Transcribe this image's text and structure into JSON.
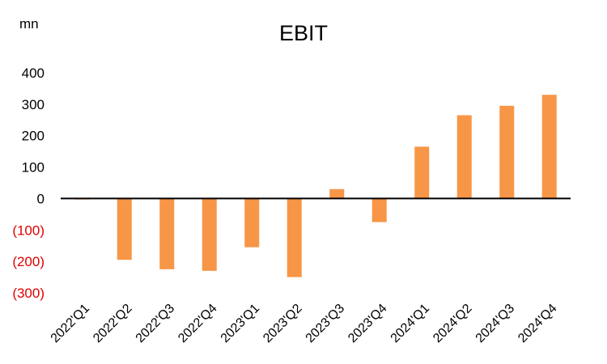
{
  "chart_data": {
    "type": "bar",
    "title": "EBIT",
    "unit": "mn",
    "categories": [
      "2022'Q1",
      "2022'Q2",
      "2022'Q3",
      "2022'Q4",
      "2023'Q1",
      "2023'Q2",
      "2023'Q3",
      "2023'Q4",
      "2024'Q1",
      "2024'Q2",
      "2024'Q3",
      "2024'Q4"
    ],
    "values": [
      -3,
      -195,
      -225,
      -230,
      -155,
      -250,
      30,
      -75,
      165,
      265,
      295,
      330
    ],
    "ylim": [
      -300,
      400
    ],
    "yticks": [
      {
        "value": 400,
        "label": "400"
      },
      {
        "value": 300,
        "label": "300"
      },
      {
        "value": 200,
        "label": "200"
      },
      {
        "value": 100,
        "label": "100"
      },
      {
        "value": 0,
        "label": "0"
      },
      {
        "value": -100,
        "label": "(100)"
      },
      {
        "value": -200,
        "label": "(200)"
      },
      {
        "value": -300,
        "label": "(300)"
      }
    ],
    "bar_color": "#f79646",
    "negative_label_color": "#e00000",
    "grid": false,
    "legend": "none"
  }
}
